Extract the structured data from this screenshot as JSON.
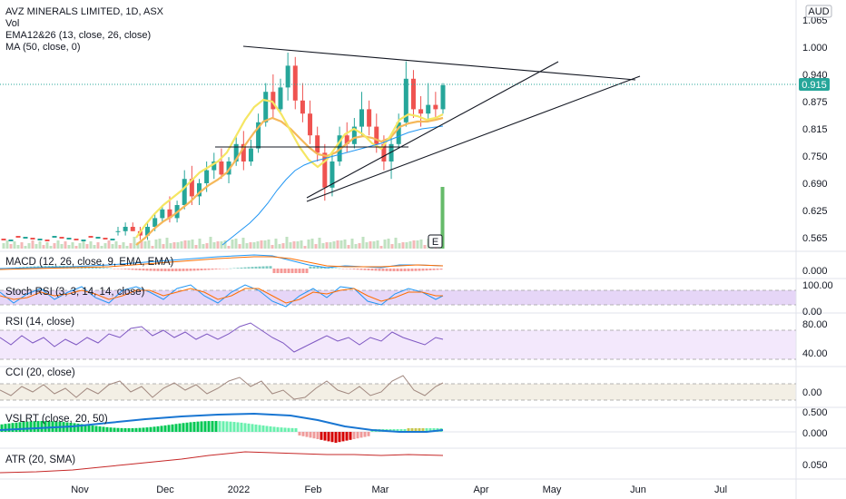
{
  "header": {
    "symbol_line": "AVZ MINERALS LIMITED, 1D, ASX",
    "vol": "Vol",
    "ema": "EMA12&26 (13, close, 26, close)",
    "ma": "MA (50, close, 0)"
  },
  "currency": "AUD",
  "price_axis": {
    "ticks": [
      "1.065",
      "1.000",
      "0.940",
      "0.875",
      "0.815",
      "0.750",
      "0.690",
      "0.625",
      "0.565"
    ],
    "current": "0.915"
  },
  "x_axis": [
    "Nov",
    "Dec",
    "2022",
    "Feb",
    "Mar",
    "Apr",
    "May",
    "Jun",
    "Jul"
  ],
  "event_marker": "E",
  "indicators": [
    {
      "key": "macd",
      "title": "MACD (12, 26, close, 9, EMA, EMA)",
      "ticks": [
        "0.000"
      ]
    },
    {
      "key": "stoch",
      "title": "Stoch RSI (3, 3, 14, 14, close)",
      "ticks": [
        "100.00",
        "0.00"
      ]
    },
    {
      "key": "rsi",
      "title": "RSI (14, close)",
      "ticks": [
        "80.00",
        "40.00"
      ]
    },
    {
      "key": "cci",
      "title": "CCI (20, close)",
      "ticks": [
        "0.00"
      ]
    },
    {
      "key": "vslrt",
      "title": "VSLRT (close, 20, 50)",
      "ticks": [
        "0.500",
        "0.000"
      ]
    },
    {
      "key": "atr",
      "title": "ATR (20, SMA)",
      "ticks": [
        "0.050"
      ]
    }
  ],
  "colors": {
    "up": "#26a69a",
    "down": "#ef5350",
    "ema_fast": "#f5e663",
    "ema_slow": "#f5b85a",
    "ma": "#2196f3",
    "current_price": "#26a69a"
  },
  "chart_data": {
    "type": "candlestick",
    "title": "AVZ MINERALS LIMITED, 1D, ASX",
    "ylim": [
      0.54,
      1.09
    ],
    "ohlc_approx": [
      [
        0.58,
        0.59,
        0.57,
        0.58
      ],
      [
        0.58,
        0.6,
        0.57,
        0.59
      ],
      [
        0.59,
        0.6,
        0.58,
        0.58
      ],
      [
        0.58,
        0.59,
        0.56,
        0.57
      ],
      [
        0.57,
        0.6,
        0.56,
        0.59
      ],
      [
        0.59,
        0.62,
        0.58,
        0.61
      ],
      [
        0.61,
        0.64,
        0.6,
        0.63
      ],
      [
        0.63,
        0.66,
        0.6,
        0.61
      ],
      [
        0.61,
        0.65,
        0.6,
        0.64
      ],
      [
        0.64,
        0.72,
        0.63,
        0.7
      ],
      [
        0.7,
        0.73,
        0.64,
        0.66
      ],
      [
        0.66,
        0.7,
        0.64,
        0.69
      ],
      [
        0.69,
        0.74,
        0.67,
        0.72
      ],
      [
        0.72,
        0.76,
        0.7,
        0.74
      ],
      [
        0.74,
        0.77,
        0.7,
        0.71
      ],
      [
        0.71,
        0.75,
        0.69,
        0.74
      ],
      [
        0.74,
        0.8,
        0.73,
        0.78
      ],
      [
        0.78,
        0.81,
        0.72,
        0.74
      ],
      [
        0.74,
        0.79,
        0.73,
        0.77
      ],
      [
        0.77,
        0.85,
        0.76,
        0.83
      ],
      [
        0.83,
        0.92,
        0.82,
        0.9
      ],
      [
        0.9,
        0.94,
        0.84,
        0.86
      ],
      [
        0.86,
        0.93,
        0.85,
        0.91
      ],
      [
        0.91,
        0.99,
        0.88,
        0.96
      ],
      [
        0.96,
        0.98,
        0.86,
        0.88
      ],
      [
        0.88,
        0.92,
        0.83,
        0.85
      ],
      [
        0.85,
        0.88,
        0.78,
        0.8
      ],
      [
        0.8,
        0.82,
        0.74,
        0.76
      ],
      [
        0.76,
        0.78,
        0.65,
        0.68
      ],
      [
        0.68,
        0.76,
        0.66,
        0.74
      ],
      [
        0.74,
        0.82,
        0.73,
        0.8
      ],
      [
        0.8,
        0.83,
        0.76,
        0.78
      ],
      [
        0.78,
        0.84,
        0.77,
        0.82
      ],
      [
        0.82,
        0.9,
        0.8,
        0.86
      ],
      [
        0.86,
        0.88,
        0.8,
        0.82
      ],
      [
        0.82,
        0.85,
        0.76,
        0.78
      ],
      [
        0.78,
        0.8,
        0.72,
        0.74
      ],
      [
        0.74,
        0.8,
        0.7,
        0.78
      ],
      [
        0.78,
        0.85,
        0.77,
        0.83
      ],
      [
        0.83,
        0.97,
        0.82,
        0.93
      ],
      [
        0.93,
        0.95,
        0.84,
        0.86
      ],
      [
        0.86,
        0.89,
        0.82,
        0.85
      ],
      [
        0.85,
        0.92,
        0.83,
        0.87
      ],
      [
        0.87,
        0.9,
        0.84,
        0.86
      ],
      [
        0.86,
        0.92,
        0.85,
        0.915
      ]
    ]
  }
}
